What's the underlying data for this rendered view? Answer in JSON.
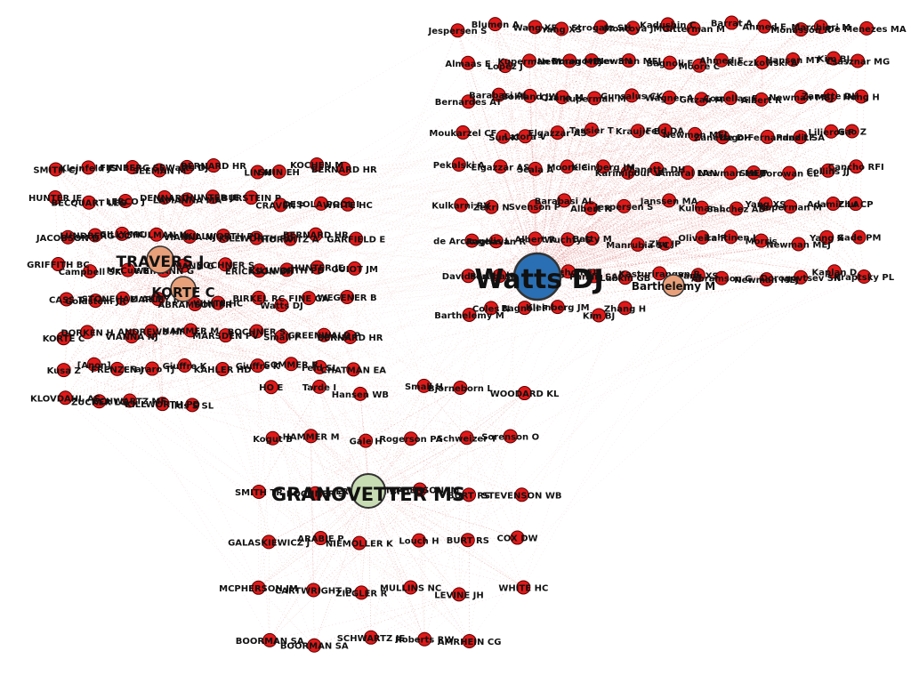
{
  "colors": {
    "node_fill": "#e01919",
    "node_stroke": "#5a0000",
    "edge": "#c41a1a",
    "watts_fill": "#2a6fb3",
    "travers_fill": "#e7a07a",
    "granovetter_fill": "#c8dcb4",
    "background": "#ffffff"
  },
  "hubs": [
    {
      "id": "watts",
      "label": "Watts DJ",
      "color": "#2a6fb3"
    },
    {
      "id": "travers",
      "label": "TRAVERS J",
      "color": "#e7a07a"
    },
    {
      "id": "korte",
      "label": "KORTE C",
      "color": "#e7a07a"
    },
    {
      "id": "granovetter",
      "label": "GRANOVETTER MS",
      "color": "#c8dcb4"
    },
    {
      "id": "barthelemy",
      "label": "Barthelemy M",
      "color": "#e7a07a"
    }
  ],
  "clusters": {
    "right": {
      "hub": "watts",
      "nodes": [
        "Jespersen S",
        "Blumen A",
        "Wang XF",
        "Yang XS",
        "Strogatz SH",
        "Montoya JM",
        "Kadushin C",
        "Gitterman M",
        "Barrat A",
        "Ahmed E",
        "Monasson R",
        "Marchiori M",
        "De Menezes MA",
        "Almaas E",
        "Lopez J",
        "Kuperman M",
        "Newman MEJ",
        "Dorogovtsev SN",
        "Newman MEJ",
        "Bagnoli F",
        "Moore C",
        "Ahmed E",
        "Kleczkowski A",
        "Hansen MT",
        "Kim BJ",
        "Csasznar MG",
        "Bernardes AT",
        "Barabasi AL",
        "Bohland JW",
        "Ozana M",
        "Kuperman M",
        "Gunsalus CK",
        "Wagner A",
        "Gitzau M",
        "Comellas F",
        "Albert R",
        "Newman MEJ",
        "Zanette DH",
        "Hong H",
        "Moukarzel CF",
        "Sun K",
        "Latora V",
        "Elgazzar AS",
        "Tassier T",
        "Kraujic B",
        "Feld DA",
        "Newman MEJ",
        "Zanette DH",
        "Lago-Fernandez LF",
        "Pandit SA",
        "Liljeros F",
        "Gao Z",
        "Pekalski A",
        "Elgazzar AS",
        "Scala A",
        "Moore C",
        "Kleinberg JM",
        "Karimipour V",
        "Zanette DH",
        "Amaral LAN",
        "Newman MEJ",
        "Sen P",
        "Borowan CL",
        "Collins JJ",
        "Cancho RFI",
        "Kulkarni RV",
        "Zekri N",
        "Svenson P",
        "Barabasi AL",
        "Albert R",
        "Jespersen S",
        "Janssen MA",
        "Kulman L",
        "Sanchez AD",
        "Yang XS",
        "Kuperman M",
        "Adamic LA",
        "Zhu CP",
        "de Arcangelis L",
        "Raghavan R",
        "Albert R",
        "Wuchty S",
        "Batty M",
        "Manrubia SC",
        "Zhu JP",
        "Oliveira F",
        "Lahtinen J",
        "Morris",
        "Newman MEJ",
        "Yang X",
        "Gade PM",
        "Davidsen J",
        "Barabasi AL",
        "Jespersen S",
        "Cancho RFI",
        "Pandit SA",
        "Lubkin GB",
        "Kasturirangan R",
        "Yang XS",
        "Abramson G",
        "Newman MEJ",
        "Dorogovtsev SN",
        "Kaplan D",
        "Kraptsky PL",
        "Barthelemy M",
        "Coles N",
        "Bagnoli F",
        "Kleinberg JM",
        "Kim BJ",
        "Zhang H"
      ]
    },
    "left": {
      "hubs": [
        "travers",
        "korte"
      ],
      "nodes": [
        "SMITH CJ",
        "Kleinfeld JS",
        "FIENBERG SE",
        "SEEMAN M",
        "Watts DJ",
        "BERNARD HR",
        "LIN N",
        "SHIN EH",
        "KOCHEN M",
        "BERNARD HR",
        "HUNTER JE",
        "BECQUART LEG",
        "LERCO J",
        "DENNARD",
        "LAMANNA MA",
        "HUNTER JE",
        "BURSTEIN P",
        "CRAVEN P",
        "DESOLA POOL I",
        "WHITE HC",
        "JACOBSON D",
        "LUNDBERG CC",
        "GILLY MC",
        "SHULMAN N",
        "VIANNA NJ",
        "KILLWORTH PD",
        "KILLWORTH PD",
        "HORWITZ A",
        "BERNARD HR",
        "GARFIELD E",
        "GRIFFITH BC",
        "Campbell SK",
        "McCue B",
        "WEIMANN G",
        "WEIMANN G",
        "BOCHNER S",
        "ERICKSON BH",
        "KILLWORTH PD",
        "HUNTER JE",
        "GUIOT JM",
        "CASS T",
        "Goldstein JR",
        "STONEHAM AKM",
        "DARLEY JM",
        "ABRAMSON PR",
        "WHITE HC",
        "BIRKEL RC",
        "Watts DJ",
        "FINE GA",
        "WEGENER B",
        "KORTE C",
        "DORKEN H",
        "VIANNA NJ",
        "ANDREWS HF",
        "HAMMER M",
        "MARSDEN PV",
        "BOCHNER S",
        "Small F",
        "GREENWALD P",
        "BERNARD HR",
        "Kusa Z",
        "[Anon]",
        "FRENZEN J",
        "Fararo TJ",
        "Giuffre K",
        "KAHLER HD",
        "Giuffre K",
        "SOMMER R",
        "Feld SL",
        "CHATMAN EA",
        "KLOVDAHL AS",
        "ZUCKER LG",
        "SCHWARTZ MF",
        "KILLWORTH PD",
        "Ilds S SL"
      ]
    },
    "bottom": {
      "hub": "granovetter",
      "nodes": [
        "HO E",
        "Tarde I",
        "Hansen WB",
        "Small H",
        "Bjorneborn L",
        "WOODARD KL",
        "Kogut B",
        "HAMMER M",
        "Gale H",
        "Rogerson PA",
        "Schweizer T",
        "Sorenson O",
        "SMITH TR",
        "BOCHNER S",
        "ERICKSON BH",
        "MCPHERSON JM",
        "BURT RS",
        "STEVENSON WB",
        "GALASKIEWICZ J",
        "ARABIE P",
        "NIEMOLLER K",
        "Louch H",
        "BURT RS",
        "COX DW",
        "MCPHERSON JM",
        "CARTWRIGHT D",
        "ZIEGLER R",
        "MULLINS NC",
        "LEVINE JH",
        "WHITE HC",
        "BOORMAN SA",
        "BOORMAN SA",
        "SCHWARTZ JE",
        "Roberts RW",
        "AMRHEIN CG"
      ]
    }
  }
}
